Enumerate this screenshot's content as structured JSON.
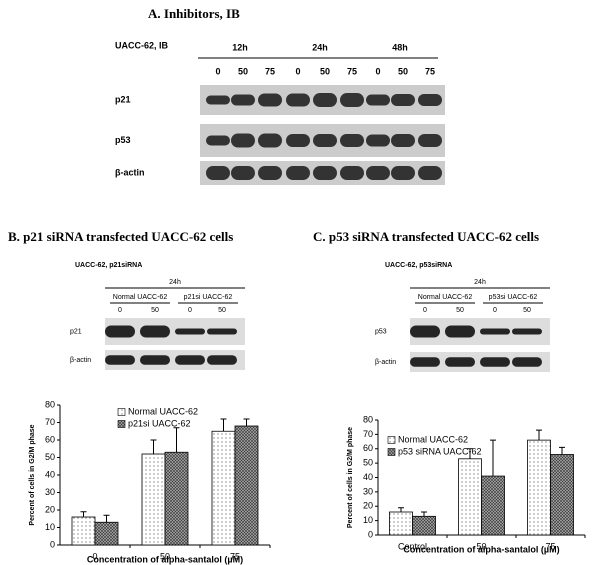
{
  "panel_a": {
    "title": "A. Inhibitors, IB",
    "cell_line": "UACC-62, IB",
    "times": [
      "12h",
      "24h",
      "48h"
    ],
    "doses": [
      "0",
      "50",
      "75",
      "0",
      "50",
      "75",
      "0",
      "50",
      "75"
    ],
    "rows": [
      "p21",
      "p53",
      "β-actin"
    ]
  },
  "panel_b": {
    "title": "B. p21 siRNA transfected UACC-62 cells",
    "cell_line": "UACC-62, p21siRNA",
    "time": "24h",
    "groups": [
      "Normal UACC-62",
      "p21si UACC-62"
    ],
    "doses": [
      "0",
      "50",
      "0",
      "50"
    ],
    "rows": [
      "p21",
      "β-actin"
    ]
  },
  "panel_c": {
    "title": "C. p53 siRNA transfected UACC-62 cells",
    "cell_line": "UACC-62, p53siRNA",
    "time": "24h",
    "groups": [
      "Normal UACC-62",
      "p53si UACC-62"
    ],
    "doses": [
      "0",
      "50",
      "0",
      "50"
    ],
    "rows": [
      "p53",
      "β-actin"
    ]
  },
  "chart_data": [
    {
      "type": "bar",
      "y_label": "Percent of cells in G2/M phase",
      "x_label": "Concentration of alpha-santalol (µM)",
      "categories": [
        "0",
        "50",
        "75"
      ],
      "series": [
        {
          "name": "Normal UACC-62",
          "color": "dots",
          "values": [
            16,
            52,
            65
          ],
          "errors": [
            3,
            8,
            7
          ]
        },
        {
          "name": "p21si UACC-62",
          "color": "crosshatch",
          "values": [
            13,
            53,
            68
          ],
          "errors": [
            4,
            14,
            4
          ]
        }
      ],
      "ylim": [
        0,
        80
      ],
      "yticks": [
        0,
        10,
        20,
        30,
        40,
        50,
        60,
        70,
        80
      ],
      "grid": false
    },
    {
      "type": "bar",
      "y_label": "Percent of cells in G2/M phase",
      "x_label": "Concentration of alpha-santalol (µM)",
      "categories": [
        "Control",
        "50",
        "75"
      ],
      "series": [
        {
          "name": "Normal UACC-62",
          "color": "dots",
          "values": [
            16,
            53,
            66
          ],
          "errors": [
            3,
            7,
            7
          ]
        },
        {
          "name": "p53 siRNA UACC-62",
          "color": "crosshatch",
          "values": [
            13,
            41,
            56
          ],
          "errors": [
            3,
            25,
            5
          ]
        }
      ],
      "ylim": [
        0,
        80
      ],
      "yticks": [
        0,
        10,
        20,
        30,
        40,
        50,
        60,
        70,
        80
      ],
      "grid": false
    }
  ]
}
